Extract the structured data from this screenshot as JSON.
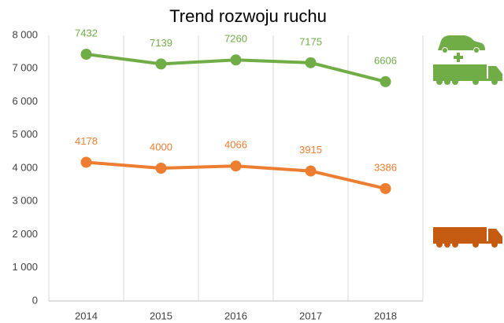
{
  "chart_data": {
    "type": "line",
    "title": "Trend rozwoju ruchu",
    "categories": [
      "2014",
      "2015",
      "2016",
      "2017",
      "2018"
    ],
    "series": [
      {
        "color": "#70ad47",
        "values": [
          7432,
          7139,
          7260,
          7175,
          6606
        ]
      },
      {
        "color": "#ed7d31",
        "values": [
          4178,
          4000,
          4066,
          3915,
          3386
        ]
      }
    ],
    "ylim": [
      0,
      8000
    ],
    "yticks": [
      0,
      {
        "value": 1000,
        "label": "1 000"
      },
      {
        "value": 2000,
        "label": "2 000"
      },
      {
        "value": 3000,
        "label": "3 000"
      },
      {
        "value": 4000,
        "label": "4 000"
      },
      {
        "value": 5000,
        "label": "5 000"
      },
      {
        "value": 6000,
        "label": "6 000"
      },
      {
        "value": 7000,
        "label": "7 000"
      },
      {
        "value": 8000,
        "label": "8 000"
      }
    ],
    "grid": false
  }
}
